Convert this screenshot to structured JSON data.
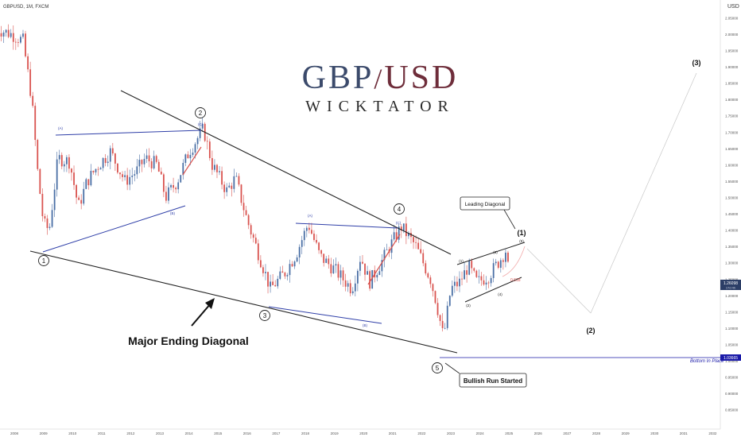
{
  "symbol_label": "GBPUSD, 1M, FXCM",
  "currency_label": "USD",
  "brand": {
    "part1": "GBP",
    "slash": "/",
    "part2": "USD",
    "subtitle": "WICKTATOR",
    "color1": "#3b4a6b",
    "color2": "#6e2d3a"
  },
  "annotations": {
    "major": "Major Ending Diagonal",
    "leading": "Leading Diagonal",
    "bullish": "Bullish Run Started",
    "bottom": "Bottom In Place",
    "fib": "0.618"
  },
  "waves": {
    "w1": "1",
    "w2": "2",
    "w3": "3",
    "w4": "4",
    "w5": "5",
    "big1": "(1)",
    "big2": "(2)",
    "big3": "(3)",
    "ta1": "(A)",
    "tb1": "(B)",
    "tc1": "(C)",
    "ta2": "(A)",
    "tb2": "(B)",
    "tc2": "(C)",
    "s1": "(1)",
    "s2": "(2)",
    "s3": "(3)",
    "s4": "(4)",
    "s5": "(5)"
  },
  "price_tags": {
    "current": "1.26098",
    "countdown": "17d 4h",
    "bottom": "1.03665"
  },
  "colors": {
    "up": "#4a6fa5",
    "down": "#d9534f",
    "bottom_line": "#1a1aa8",
    "tag_bg": "#2c3e66",
    "line_blue": "#2f3fa8"
  },
  "chart_data": {
    "type": "candlestick",
    "title": "GBPUSD, 1M, FXCM",
    "x_ticks": [
      "2008",
      "2009",
      "2010",
      "2011",
      "2012",
      "2013",
      "2014",
      "2015",
      "2016",
      "2017",
      "2018",
      "2019",
      "2020",
      "2021",
      "2022",
      "2023",
      "2024",
      "2025",
      "2026",
      "2027",
      "2028",
      "2029",
      "2030",
      "2031",
      "2032"
    ],
    "y_ticks": [
      "2.05000",
      "2.00000",
      "1.95000",
      "1.90000",
      "1.85000",
      "1.80000",
      "1.75000",
      "1.70000",
      "1.65000",
      "1.60000",
      "1.55000",
      "1.50000",
      "1.45000",
      "1.40000",
      "1.35000",
      "1.30000",
      "1.25000",
      "1.20000",
      "1.15000",
      "1.10000",
      "1.05000",
      "1.00000",
      "0.95000",
      "0.90000",
      "0.85000"
    ],
    "ylim": [
      0.82,
      2.09
    ],
    "close_path": [
      [
        2007.3,
        2.02
      ],
      [
        2007.9,
        2.0
      ],
      [
        2008.3,
        1.98
      ],
      [
        2008.6,
        1.8
      ],
      [
        2008.8,
        1.58
      ],
      [
        2009.0,
        1.42
      ],
      [
        2009.2,
        1.4
      ],
      [
        2009.5,
        1.62
      ],
      [
        2009.9,
        1.61
      ],
      [
        2010.2,
        1.47
      ],
      [
        2010.5,
        1.55
      ],
      [
        2010.9,
        1.6
      ],
      [
        2011.3,
        1.64
      ],
      [
        2011.8,
        1.55
      ],
      [
        2012.2,
        1.58
      ],
      [
        2012.5,
        1.62
      ],
      [
        2012.9,
        1.6
      ],
      [
        2013.2,
        1.5
      ],
      [
        2013.6,
        1.55
      ],
      [
        2014.0,
        1.64
      ],
      [
        2014.5,
        1.71
      ],
      [
        2014.8,
        1.6
      ],
      [
        2015.3,
        1.52
      ],
      [
        2015.6,
        1.56
      ],
      [
        2016.0,
        1.43
      ],
      [
        2016.5,
        1.3
      ],
      [
        2016.8,
        1.22
      ],
      [
        2017.3,
        1.27
      ],
      [
        2017.7,
        1.33
      ],
      [
        2018.1,
        1.42
      ],
      [
        2018.5,
        1.32
      ],
      [
        2019.0,
        1.28
      ],
      [
        2019.6,
        1.22
      ],
      [
        2019.9,
        1.32
      ],
      [
        2020.2,
        1.24
      ],
      [
        2020.6,
        1.3
      ],
      [
        2020.9,
        1.35
      ],
      [
        2021.3,
        1.41
      ],
      [
        2021.8,
        1.35
      ],
      [
        2022.3,
        1.25
      ],
      [
        2022.5,
        1.18
      ],
      [
        2022.75,
        1.07
      ],
      [
        2023.0,
        1.22
      ],
      [
        2023.3,
        1.24
      ],
      [
        2023.6,
        1.29
      ],
      [
        2023.9,
        1.24
      ],
      [
        2024.3,
        1.26
      ],
      [
        2024.7,
        1.31
      ],
      [
        2024.9,
        1.34
      ],
      [
        2025.0,
        1.26
      ]
    ],
    "projection": [
      [
        2025.0,
        1.27
      ],
      [
        2025.5,
        1.37
      ],
      [
        2026.3,
        1.17
      ],
      [
        2029.5,
        1.9
      ]
    ],
    "fib_level": 1.25,
    "bottom_level": 1.03665,
    "current_price": 1.26098
  }
}
